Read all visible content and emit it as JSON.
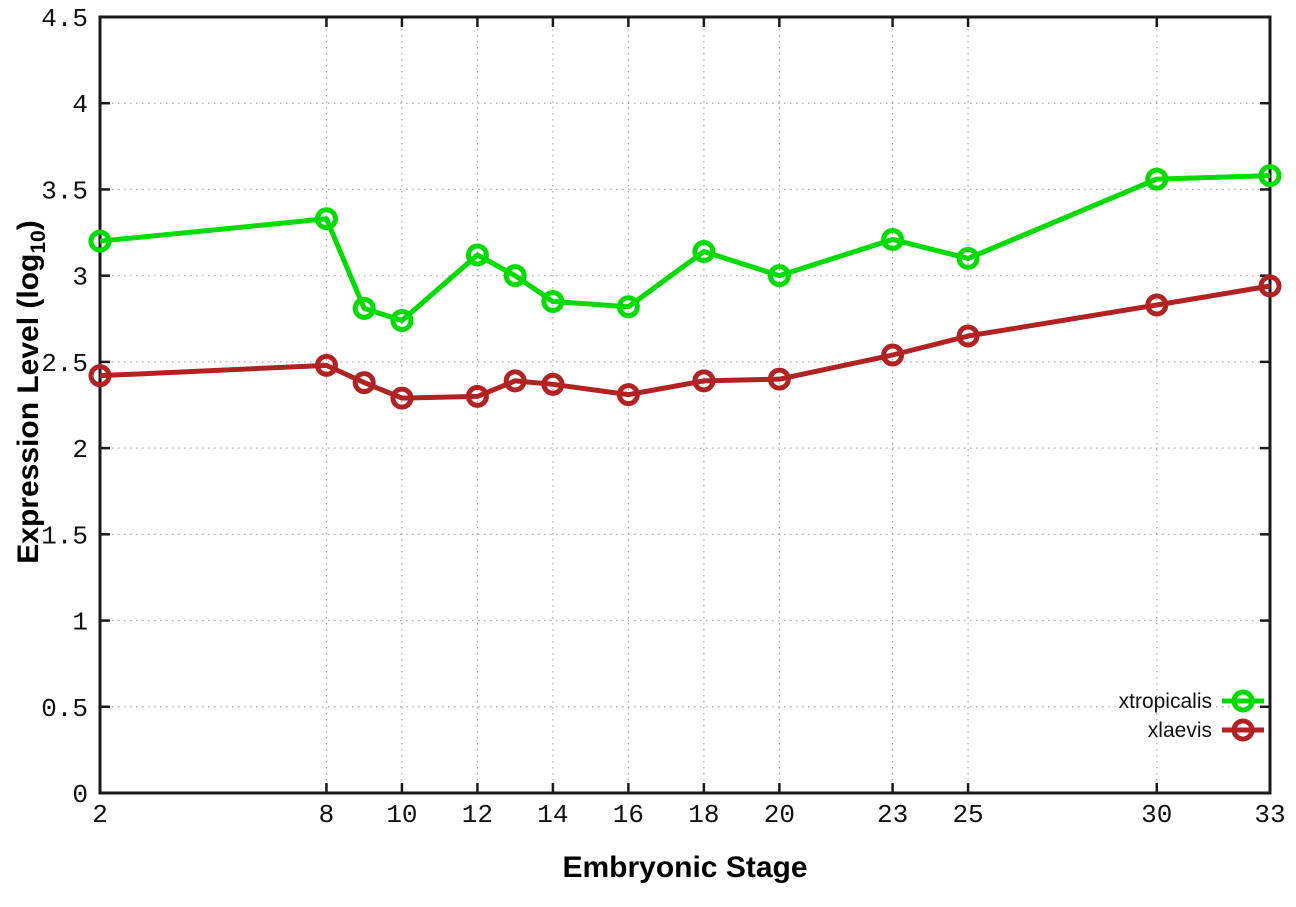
{
  "chart_data": {
    "type": "line",
    "title": "",
    "xlabel": "Embryonic Stage",
    "ylabel": "Expression Level (log10)",
    "ylabel_parts": {
      "main": "Expression Level (log",
      "sub": "10",
      "suffix": ")"
    },
    "x": [
      2,
      8,
      9,
      10,
      12,
      13,
      14,
      16,
      18,
      20,
      23,
      25,
      30,
      33
    ],
    "series": [
      {
        "name": "xtropicalis",
        "color": "#00dc00",
        "values": [
          3.2,
          3.33,
          2.81,
          2.74,
          3.12,
          3.0,
          2.85,
          2.82,
          3.14,
          3.0,
          3.21,
          3.1,
          3.56,
          3.58
        ]
      },
      {
        "name": "xlaevis",
        "color": "#b22222",
        "values": [
          2.42,
          2.48,
          2.38,
          2.29,
          2.3,
          2.39,
          2.37,
          2.31,
          2.39,
          2.4,
          2.54,
          2.65,
          2.83,
          2.94
        ]
      }
    ],
    "xlim": [
      2,
      33
    ],
    "ylim": [
      0,
      4.5
    ],
    "xticks": [
      2,
      8,
      10,
      12,
      14,
      16,
      18,
      20,
      23,
      25,
      30,
      33
    ],
    "xtick_labels": [
      "2",
      "8",
      "10",
      "12",
      "14",
      "16",
      "18",
      "20",
      "23",
      "25",
      "30",
      "33"
    ],
    "yticks": [
      0,
      0.5,
      1,
      1.5,
      2,
      2.5,
      3,
      3.5,
      4,
      4.5
    ],
    "ytick_labels": [
      "0",
      "0.5",
      "1",
      "1.5",
      "2",
      "2.5",
      "3",
      "3.5",
      "4",
      "4.5"
    ],
    "grid": true,
    "grid_style": "dotted",
    "grid_color": "#aaaaaa",
    "axis_color": "#1a1a1a",
    "background": "#ffffff",
    "marker": "open-circle",
    "line_width": 5,
    "legend_position": "inside-bottom-right",
    "legend_entries": [
      "xtropicalis",
      "xlaevis"
    ]
  }
}
